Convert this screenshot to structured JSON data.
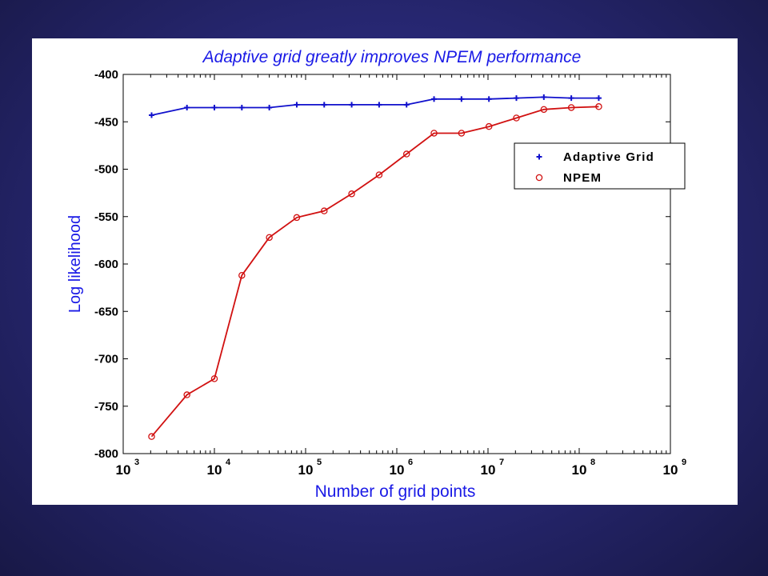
{
  "chart_data": {
    "type": "line",
    "title": "Adaptive grid greatly improves NPEM performance",
    "xlabel": "Number of grid points",
    "ylabel": "Log likelihood",
    "xscale": "log",
    "xlim": [
      1000,
      1000000000
    ],
    "ylim": [
      -800,
      -400
    ],
    "x_ticks": [
      {
        "value": 1000,
        "base": "10",
        "exp": "3"
      },
      {
        "value": 10000,
        "base": "10",
        "exp": "4"
      },
      {
        "value": 100000,
        "base": "10",
        "exp": "5"
      },
      {
        "value": 1000000,
        "base": "10",
        "exp": "6"
      },
      {
        "value": 10000000,
        "base": "10",
        "exp": "7"
      },
      {
        "value": 100000000,
        "base": "10",
        "exp": "8"
      },
      {
        "value": 1000000000,
        "base": "10",
        "exp": "9"
      }
    ],
    "y_ticks": [
      -400,
      -450,
      -500,
      -550,
      -600,
      -650,
      -700,
      -750,
      -800
    ],
    "grid": false,
    "legend_position": "right",
    "series": [
      {
        "name": "Adaptive Grid",
        "color": "#1010cc",
        "marker": "plus",
        "x": [
          2048,
          5000,
          10000,
          20000,
          40000,
          80000,
          160000,
          320000,
          640000,
          1280000,
          2560000,
          5120000,
          10240000,
          20480000,
          40960000,
          81920000,
          163840000
        ],
        "y": [
          -443,
          -435,
          -435,
          -435,
          -435,
          -432,
          -432,
          -432,
          -432,
          -432,
          -426,
          -426,
          -426,
          -425,
          -424,
          -425,
          -425
        ]
      },
      {
        "name": "NPEM",
        "color": "#d11111",
        "marker": "circle",
        "x": [
          2048,
          5000,
          10000,
          20000,
          40000,
          80000,
          160000,
          320000,
          640000,
          1280000,
          2560000,
          5120000,
          10240000,
          20480000,
          40960000,
          81920000,
          163840000
        ],
        "y": [
          -782,
          -738,
          -721,
          -612,
          -572,
          -551,
          -544,
          -526,
          -506,
          -484,
          -462,
          -462,
          -455,
          -446,
          -437,
          -435,
          -434
        ]
      }
    ]
  }
}
